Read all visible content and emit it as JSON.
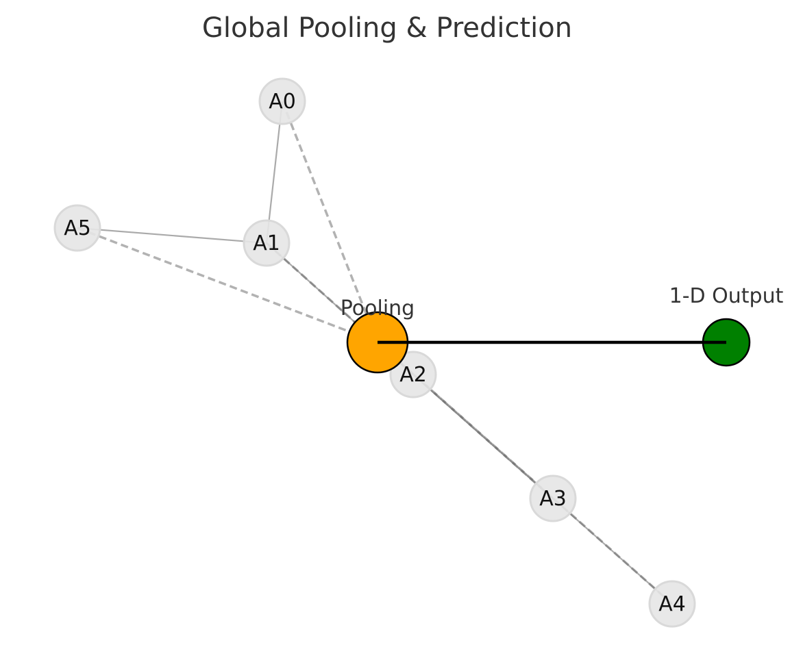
{
  "title": "Global Pooling & Prediction",
  "colors": {
    "atom_fill": "#e6e6e6",
    "atom_stroke": "#d9d9d9",
    "bond": "#aaaaaa",
    "pool_edge": "#666666",
    "pooling_fill": "#ffa500",
    "output_fill": "#008000",
    "output_edge": "#000000",
    "title": "#333333"
  },
  "atoms": [
    {
      "id": "A0",
      "label": "A0"
    },
    {
      "id": "A1",
      "label": "A1"
    },
    {
      "id": "A2",
      "label": "A2"
    },
    {
      "id": "A3",
      "label": "A3"
    },
    {
      "id": "A4",
      "label": "A4"
    },
    {
      "id": "A5",
      "label": "A5"
    }
  ],
  "bonds": [
    {
      "from": "A0",
      "to": "A1"
    },
    {
      "from": "A1",
      "to": "A5"
    },
    {
      "from": "A1",
      "to": "A2"
    },
    {
      "from": "A2",
      "to": "A3"
    },
    {
      "from": "A3",
      "to": "A4"
    }
  ],
  "pooling_edges": [
    {
      "from": "A0",
      "to": "pooling"
    },
    {
      "from": "A1",
      "to": "pooling"
    },
    {
      "from": "A2",
      "to": "pooling"
    },
    {
      "from": "A3",
      "to": "pooling"
    },
    {
      "from": "A4",
      "to": "pooling"
    },
    {
      "from": "A5",
      "to": "pooling"
    }
  ],
  "pooling": {
    "label": "Pooling"
  },
  "output": {
    "label": "1-D Output"
  }
}
